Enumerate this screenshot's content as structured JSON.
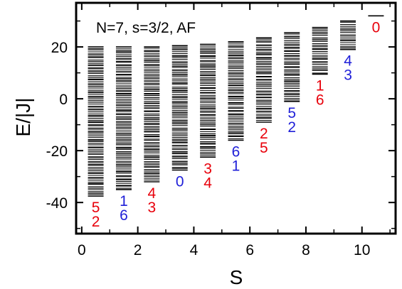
{
  "chart_data": {
    "type": "scatter",
    "title": "N=7, s=3/2, AF",
    "xlabel": "S",
    "ylabel": "E/|J|",
    "xlim": [
      -0.2,
      11.2
    ],
    "ylim": [
      -52,
      37
    ],
    "xticks": [
      "0",
      "2",
      "4",
      "6",
      "8",
      "10"
    ],
    "yticks": [
      "20",
      "0",
      "-20",
      "-40"
    ],
    "grid": false,
    "colors": {
      "red": "#e8000b",
      "blue": "#1f1fd8",
      "levels": "#000000"
    },
    "level_bands": [
      {
        "S": 0.5,
        "min": -37.5,
        "max": 20.0
      },
      {
        "S": 1.5,
        "min": -35.0,
        "max": 20.0
      },
      {
        "S": 2.5,
        "min": -32.0,
        "max": 20.0
      },
      {
        "S": 3.5,
        "min": -27.5,
        "max": 20.5
      },
      {
        "S": 4.5,
        "min": -22.5,
        "max": 21.0
      },
      {
        "S": 5.5,
        "min": -16.0,
        "max": 22.0
      },
      {
        "S": 6.5,
        "min": -9.0,
        "max": 23.5
      },
      {
        "S": 7.5,
        "min": -1.0,
        "max": 25.5
      },
      {
        "S": 8.5,
        "min": 9.5,
        "max": 27.5
      },
      {
        "S": 9.5,
        "min": 19.0,
        "max": 30.0
      },
      {
        "S": 10.5,
        "min": 32.0,
        "max": 32.0
      }
    ],
    "annotations": [
      {
        "S": 0.5,
        "top": {
          "text": "5",
          "color": "red"
        },
        "bottom": {
          "text": "2",
          "color": "red"
        }
      },
      {
        "S": 1.5,
        "top": {
          "text": "1",
          "color": "blue"
        },
        "bottom": {
          "text": "6",
          "color": "blue"
        }
      },
      {
        "S": 2.5,
        "top": {
          "text": "4",
          "color": "red"
        },
        "bottom": {
          "text": "3",
          "color": "red"
        }
      },
      {
        "S": 3.5,
        "top": {
          "text": "0",
          "color": "blue"
        }
      },
      {
        "S": 4.5,
        "top": {
          "text": "3",
          "color": "red"
        },
        "bottom": {
          "text": "4",
          "color": "red"
        }
      },
      {
        "S": 5.5,
        "top": {
          "text": "6",
          "color": "blue"
        },
        "bottom": {
          "text": "1",
          "color": "blue"
        }
      },
      {
        "S": 6.5,
        "top": {
          "text": "2",
          "color": "red"
        },
        "bottom": {
          "text": "5",
          "color": "red"
        }
      },
      {
        "S": 7.5,
        "top": {
          "text": "5",
          "color": "blue"
        },
        "bottom": {
          "text": "2",
          "color": "blue"
        }
      },
      {
        "S": 8.5,
        "top": {
          "text": "1",
          "color": "red"
        },
        "bottom": {
          "text": "6",
          "color": "red"
        }
      },
      {
        "S": 9.5,
        "top": {
          "text": "4",
          "color": "blue"
        },
        "bottom": {
          "text": "3",
          "color": "blue"
        }
      },
      {
        "S": 10.5,
        "top": {
          "text": "0",
          "color": "red"
        }
      }
    ]
  }
}
